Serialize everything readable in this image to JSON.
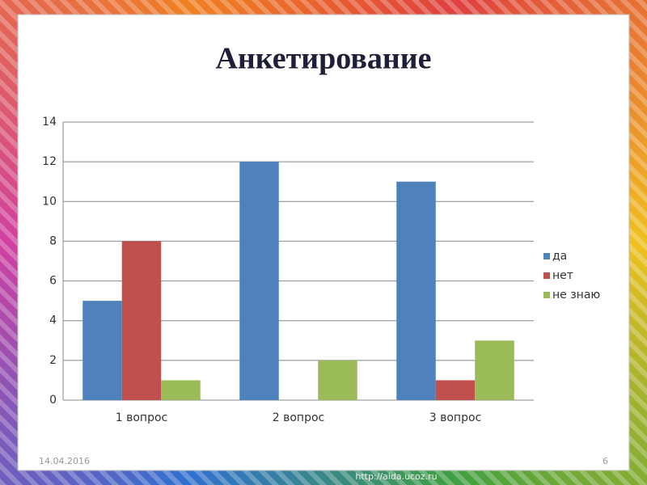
{
  "chart_data": {
    "type": "bar",
    "title": "Анкетирование",
    "categories": [
      "1 вопрос",
      "2 вопрос",
      "3 вопрос"
    ],
    "series": [
      {
        "name": "да",
        "color": "#4f81bd",
        "values": [
          5,
          12,
          11
        ]
      },
      {
        "name": "нет",
        "color": "#c0504d",
        "values": [
          8,
          0,
          1
        ]
      },
      {
        "name": "не знаю",
        "color": "#9bbb59",
        "values": [
          1,
          2,
          3
        ]
      }
    ],
    "ylim": [
      0,
      14
    ],
    "yticks": [
      0,
      2,
      4,
      6,
      8,
      10,
      12,
      14
    ],
    "grid": true,
    "legend": "right"
  },
  "footer": {
    "date": "14.04.2016",
    "page_number": "6",
    "watermark": "http://aida.ucoz.ru"
  }
}
